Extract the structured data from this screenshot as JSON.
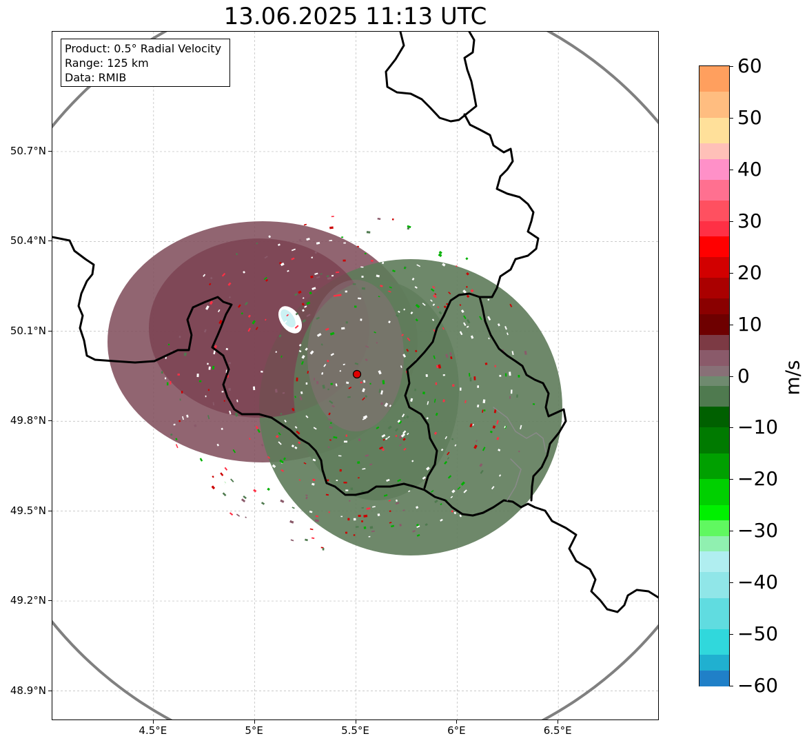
{
  "title": "13.06.2025 11:13 UTC",
  "info": {
    "product": "Product: 0.5° Radial Velocity",
    "range": "Range: 125 km",
    "source": "Data: RMIB"
  },
  "map": {
    "lon_range": [
      4.0,
      7.0
    ],
    "lat_range": [
      48.8,
      51.1
    ],
    "radar_site": {
      "lon": 5.505,
      "lat": 49.914
    },
    "range_km": 125,
    "grid": "on",
    "x_ticks": [
      {
        "value": 4.5,
        "label": "4.5°E"
      },
      {
        "value": 5.0,
        "label": "5°E"
      },
      {
        "value": 5.5,
        "label": "5.5°E"
      },
      {
        "value": 6.0,
        "label": "6°E"
      },
      {
        "value": 6.5,
        "label": "6.5°E"
      }
    ],
    "y_ticks": [
      {
        "value": 48.9,
        "label": "48.9°N"
      },
      {
        "value": 49.2,
        "label": "49.2°N"
      },
      {
        "value": 49.5,
        "label": "49.5°N"
      },
      {
        "value": 49.8,
        "label": "49.8°N"
      },
      {
        "value": 50.1,
        "label": "50.1°N"
      },
      {
        "value": 50.4,
        "label": "50.4°N"
      },
      {
        "value": 50.7,
        "label": "50.7°N"
      }
    ]
  },
  "colorbar": {
    "unit": "m/s",
    "range": [
      -60,
      60
    ],
    "tick_labels": [
      "60",
      "50",
      "40",
      "30",
      "20",
      "10",
      "0",
      "−10",
      "−20",
      "−30",
      "−40",
      "−50",
      "−60"
    ],
    "stops": [
      {
        "from": 55,
        "to": 60,
        "color": "#ff9f5e"
      },
      {
        "from": 50,
        "to": 55,
        "color": "#ffbd80"
      },
      {
        "from": 45,
        "to": 50,
        "color": "#ffe09a"
      },
      {
        "from": 42,
        "to": 45,
        "color": "#ffc0b8"
      },
      {
        "from": 38,
        "to": 42,
        "color": "#ff90c8"
      },
      {
        "from": 34,
        "to": 38,
        "color": "#ff7090"
      },
      {
        "from": 30,
        "to": 34,
        "color": "#ff5060"
      },
      {
        "from": 27,
        "to": 30,
        "color": "#ff3045"
      },
      {
        "from": 23,
        "to": 27,
        "color": "#ff0000"
      },
      {
        "from": 19,
        "to": 23,
        "color": "#d20000"
      },
      {
        "from": 15,
        "to": 19,
        "color": "#aa0000"
      },
      {
        "from": 12,
        "to": 15,
        "color": "#8a0000"
      },
      {
        "from": 8,
        "to": 12,
        "color": "#6e0000"
      },
      {
        "from": 5,
        "to": 8,
        "color": "#7c3a44"
      },
      {
        "from": 2,
        "to": 5,
        "color": "#8a5a6a"
      },
      {
        "from": 0,
        "to": 2,
        "color": "#887077"
      },
      {
        "from": -2,
        "to": 0,
        "color": "#6f8a6f"
      },
      {
        "from": -6,
        "to": -2,
        "color": "#4f7a4f"
      },
      {
        "from": -10,
        "to": -6,
        "color": "#006000"
      },
      {
        "from": -15,
        "to": -10,
        "color": "#007a00"
      },
      {
        "from": -20,
        "to": -15,
        "color": "#00a000"
      },
      {
        "from": -25,
        "to": -20,
        "color": "#00d000"
      },
      {
        "from": -28,
        "to": -25,
        "color": "#00f000"
      },
      {
        "from": -31,
        "to": -28,
        "color": "#60f860"
      },
      {
        "from": -34,
        "to": -31,
        "color": "#90f0b0"
      },
      {
        "from": -38,
        "to": -34,
        "color": "#b0eef0"
      },
      {
        "from": -43,
        "to": -38,
        "color": "#90e6e8"
      },
      {
        "from": -49,
        "to": -43,
        "color": "#60dce0"
      },
      {
        "from": -54,
        "to": -49,
        "color": "#30d8dc"
      },
      {
        "from": -57,
        "to": -54,
        "color": "#20b0d0"
      },
      {
        "from": -60,
        "to": -57,
        "color": "#2080c8"
      }
    ]
  }
}
